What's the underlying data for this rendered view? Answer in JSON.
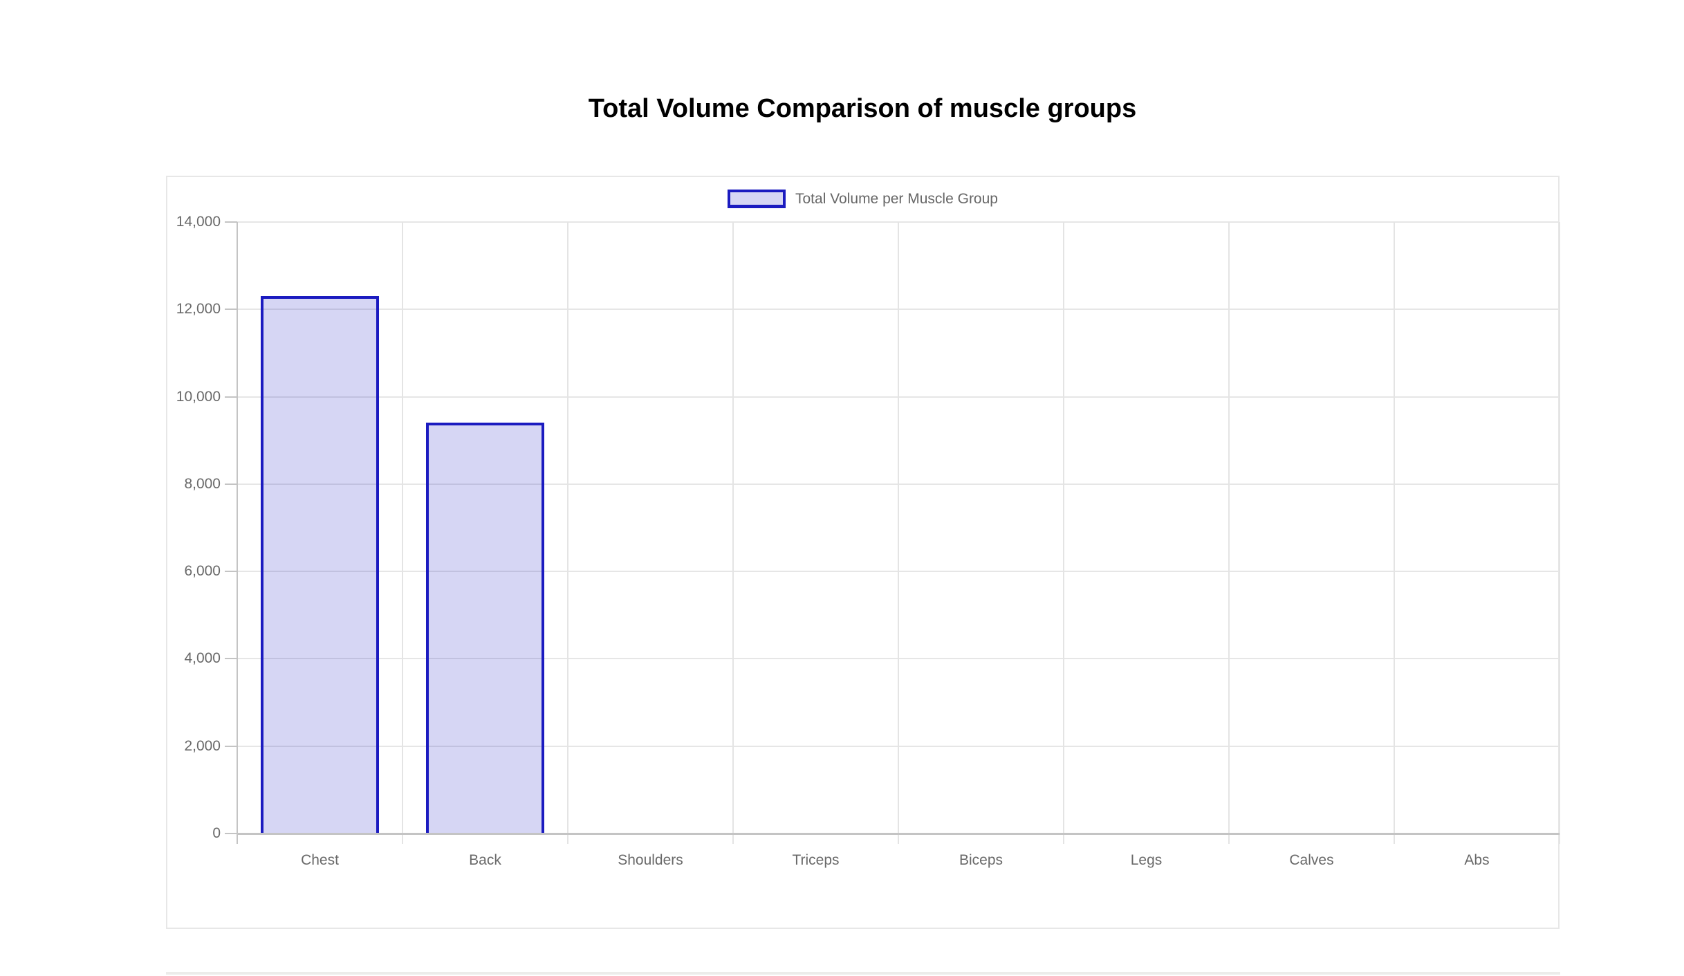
{
  "title": {
    "text": "Total Volume Comparison of muscle groups"
  },
  "legend": {
    "label": "Total Volume per Muscle Group",
    "swatch_fill": "rgba(27, 27, 192, 0.18)",
    "swatch_border": "#1b1bc0"
  },
  "chart_data": {
    "type": "bar",
    "title": "Total Volume Comparison of muscle groups",
    "categories": [
      "Chest",
      "Back",
      "Shoulders",
      "Triceps",
      "Biceps",
      "Legs",
      "Calves",
      "Abs"
    ],
    "series": [
      {
        "name": "Total Volume per Muscle Group",
        "values": [
          12300,
          9400,
          0,
          0,
          0,
          0,
          0,
          0
        ]
      }
    ],
    "xlabel": "",
    "ylabel": "",
    "ylim": [
      0,
      14000
    ],
    "ytick_step": 2000,
    "ytick_labels": [
      "14,000",
      "12,000",
      "10,000",
      "8,000",
      "6,000",
      "4,000",
      "2,000",
      "0"
    ],
    "legend_position": "top",
    "grid": true,
    "colors": {
      "bar_fill": "rgba(27, 27, 192, 0.18)",
      "bar_border": "#1b1bc0",
      "gridline": "#e6e6e6",
      "axis_line": "#c4c4c4",
      "tick_label": "#696969",
      "title_text": "#000000"
    }
  }
}
